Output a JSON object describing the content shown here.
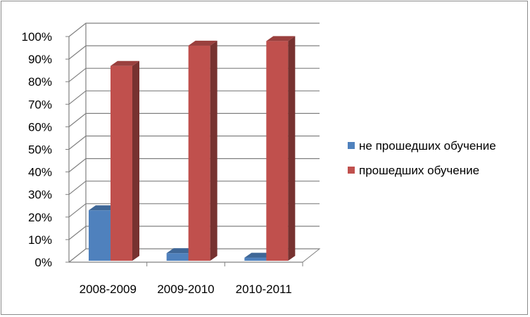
{
  "chart_data": {
    "type": "bar",
    "categories": [
      "2008-2009",
      "2009-2010",
      "2010-2011"
    ],
    "series": [
      {
        "name": "не прошедших обучение",
        "values": [
          23,
          4,
          2
        ],
        "color": "#4f81bd"
      },
      {
        "name": "прошедших обучение",
        "values": [
          87,
          96,
          98
        ],
        "color": "#c0504d"
      }
    ],
    "y_ticks": [
      "0%",
      "10%",
      "20%",
      "30%",
      "40%",
      "50%",
      "60%",
      "70%",
      "80%",
      "90%",
      "100%"
    ],
    "ylim": [
      0,
      100
    ],
    "grid": true,
    "legend_position": "right",
    "style": "3d-clustered-column"
  }
}
